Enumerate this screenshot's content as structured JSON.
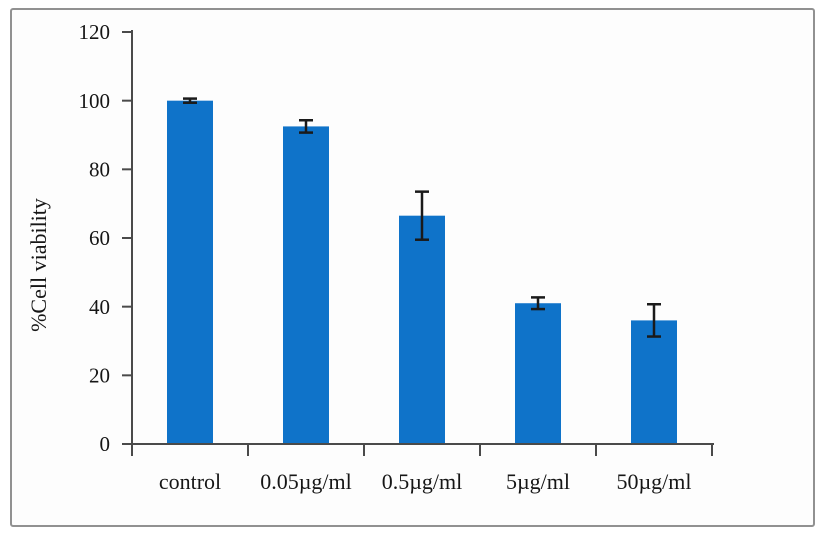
{
  "figure": {
    "background_color": "#fdfdfd",
    "frame_border_color": "#919191"
  },
  "chart_data": {
    "type": "bar",
    "title": "",
    "categories": [
      "control",
      "0.05µg/ml",
      "0.5µg/ml",
      "5µg/ml",
      "50µg/ml"
    ],
    "values": [
      100,
      92.5,
      66.5,
      41,
      36
    ],
    "errors": [
      0.6,
      1.8,
      7,
      1.7,
      4.7
    ],
    "xlabel": "",
    "ylabel": "%Cell viability",
    "ylim": [
      0,
      120
    ],
    "yticks": [
      0,
      20,
      40,
      60,
      80,
      100,
      120
    ],
    "grid": false,
    "legend": null,
    "bar_color": "#0f73c9",
    "error_bar_color": "#1a1a1a",
    "axis_color": "#4a4a4a",
    "text_color": "#161616"
  }
}
